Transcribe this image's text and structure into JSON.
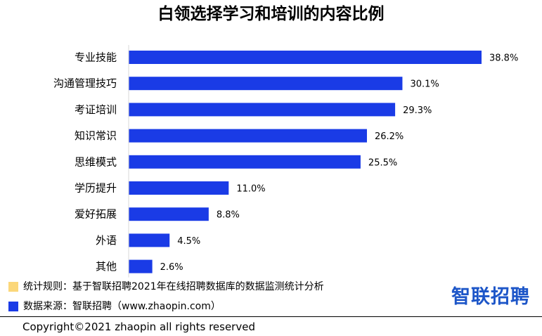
{
  "chart_data": {
    "type": "bar",
    "orientation": "horizontal",
    "title": "白领选择学习和培训的内容比例",
    "categories": [
      "专业技能",
      "沟通管理技巧",
      "考证培训",
      "知识常识",
      "思维模式",
      "学历提升",
      "爱好拓展",
      "外语",
      "其他"
    ],
    "values": [
      38.8,
      30.1,
      29.3,
      26.2,
      25.5,
      11.0,
      8.8,
      4.5,
      2.6
    ],
    "value_labels": [
      "38.8%",
      "30.1%",
      "29.3%",
      "26.2%",
      "25.5%",
      "11.0%",
      "8.8%",
      "4.5%",
      "2.6%"
    ],
    "bar_color": "#1a3be6",
    "xlim": [
      0,
      38.8
    ],
    "grid": false,
    "legend": "none"
  },
  "footer": {
    "note1_text": "统计规则：基于智联招聘2021年在线招聘数据库的数据监测统计分析",
    "note1_color": "#fbd77a",
    "note2_text": "数据来源：智联招聘（www.zhaopin.com）",
    "note2_color": "#1a3be6",
    "brand": "智联招聘",
    "copyright": "Copyright©2021 zhaopin all rights reserved"
  }
}
